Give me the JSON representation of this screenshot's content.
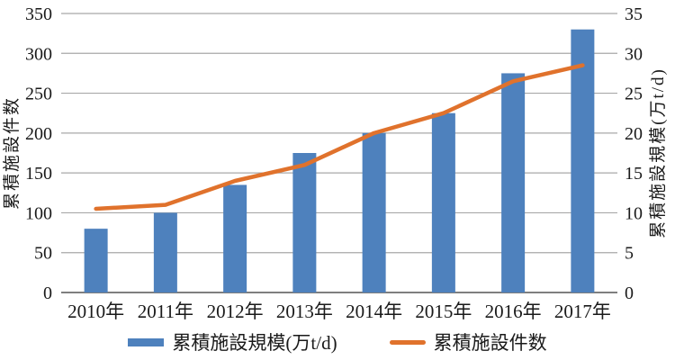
{
  "chart_data": {
    "type": "combo",
    "categories": [
      "2010年",
      "2011年",
      "2012年",
      "2013年",
      "2014年",
      "2015年",
      "2016年",
      "2017年"
    ],
    "series": [
      {
        "name": "累積施設規模(万t/d)",
        "type": "bar",
        "axis": "right",
        "color": "#4E81BD",
        "values": [
          8,
          10,
          13.5,
          17.5,
          20,
          22.5,
          27.5,
          33
        ]
      },
      {
        "name": "累積施設件数",
        "type": "line",
        "axis": "left",
        "color": "#E0722C",
        "values": [
          105,
          110,
          140,
          160,
          200,
          225,
          265,
          285
        ]
      }
    ],
    "left_axis": {
      "label": "累積施設件数",
      "min": 0,
      "max": 350,
      "step": 50,
      "ticks": [
        "0",
        "50",
        "100",
        "150",
        "200",
        "250",
        "300",
        "350"
      ]
    },
    "right_axis": {
      "label": "累積施設規模(万t/d)",
      "min": 0,
      "max": 35,
      "step": 5,
      "ticks": [
        "0",
        "5",
        "10",
        "15",
        "20",
        "25",
        "30",
        "35"
      ]
    },
    "grid": "horizontal",
    "legend_position": "bottom",
    "colors": {
      "gridline": "#A8A8A8",
      "baseline": "#7F7F7F",
      "text": "#1a1a1a"
    }
  }
}
